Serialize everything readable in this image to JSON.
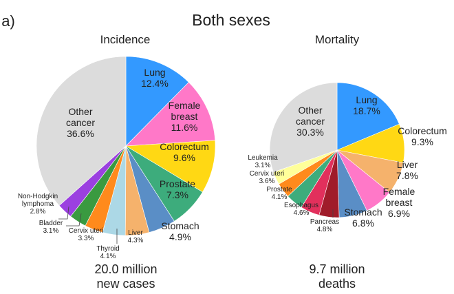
{
  "panel_label": "a)",
  "title": "Both sexes",
  "chart_data": [
    {
      "type": "pie",
      "title": "Incidence",
      "total_line1": "20.0 million",
      "total_line2": "new cases",
      "slices": [
        {
          "label": "Lung",
          "value": 12.4,
          "text": "12.4%",
          "color": "#3399ff"
        },
        {
          "label": "Female breast",
          "value": 11.6,
          "text": "11.6%",
          "color": "#ff78c8"
        },
        {
          "label": "Colorectum",
          "value": 9.6,
          "text": "9.6%",
          "color": "#ffd814"
        },
        {
          "label": "Prostate",
          "value": 7.3,
          "text": "7.3%",
          "color": "#3dac7c"
        },
        {
          "label": "Stomach",
          "value": 4.9,
          "text": "4.9%",
          "color": "#5a8ec6"
        },
        {
          "label": "Liver",
          "value": 4.3,
          "text": "4.3%",
          "color": "#f5b26c"
        },
        {
          "label": "Thyroid",
          "value": 4.1,
          "text": "4.1%",
          "color": "#acd8e6"
        },
        {
          "label": "Cervix uteri",
          "value": 3.3,
          "text": "3.3%",
          "color": "#ff8a1c"
        },
        {
          "label": "Bladder",
          "value": 3.1,
          "text": "3.1%",
          "color": "#3a9a40"
        },
        {
          "label": "Non-Hodgkin lymphoma",
          "value": 2.8,
          "text": "2.8%",
          "color": "#9b40e0"
        },
        {
          "label": "Other cancer",
          "value": 36.6,
          "text": "36.6%",
          "color": "#dcdcdc"
        }
      ]
    },
    {
      "type": "pie",
      "title": "Mortality",
      "total_line1": "9.7 million",
      "total_line2": "deaths",
      "slices": [
        {
          "label": "Lung",
          "value": 18.7,
          "text": "18.7%",
          "color": "#3399ff"
        },
        {
          "label": "Colorectum",
          "value": 9.3,
          "text": "9.3%",
          "color": "#ffd814"
        },
        {
          "label": "Liver",
          "value": 7.8,
          "text": "7.8%",
          "color": "#f5b26c"
        },
        {
          "label": "Female breast",
          "value": 6.9,
          "text": "6.9%",
          "color": "#ff78c8"
        },
        {
          "label": "Stomach",
          "value": 6.8,
          "text": "6.8%",
          "color": "#5a8ec6"
        },
        {
          "label": "Pancreas",
          "value": 4.8,
          "text": "4.8%",
          "color": "#a01c2a"
        },
        {
          "label": "Esophagus",
          "value": 4.6,
          "text": "4.6%",
          "color": "#e2305c"
        },
        {
          "label": "Prostate",
          "value": 4.1,
          "text": "4.1%",
          "color": "#3dac7c"
        },
        {
          "label": "Cervix uteri",
          "value": 3.6,
          "text": "3.6%",
          "color": "#ff8a1c"
        },
        {
          "label": "Leukemia",
          "value": 3.1,
          "text": "3.1%",
          "color": "#ffff9a"
        },
        {
          "label": "Other cancer",
          "value": 30.3,
          "text": "30.3%",
          "color": "#dcdcdc"
        }
      ]
    }
  ],
  "labels": {
    "female": "Female",
    "breast": "breast",
    "nhl1": "Non-Hodgkin",
    "nhl2": "lymphoma",
    "other1": "Other",
    "other2": "cancer"
  }
}
